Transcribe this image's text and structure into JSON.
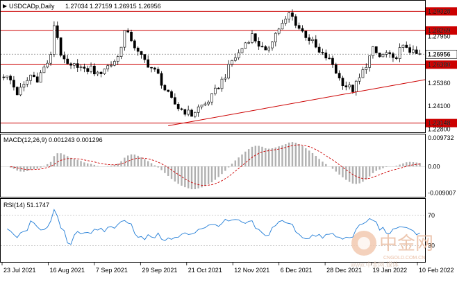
{
  "chart_data": [
    {
      "type": "candlestick",
      "symbol_header": "USDCADp,Daily",
      "ohlc_readout": "1.27034 1.27159 1.26915 1.26956",
      "y_ticks": [
        "1.29328",
        "1.28269",
        "1.27950",
        "1.26956",
        "1.26380",
        "1.25360",
        "1.24100",
        "1.23148",
        "1.22800"
      ],
      "ylim": [
        1.2275,
        1.2965
      ],
      "horizontal_lines": [
        {
          "value": 1.29328,
          "label": "1.29328",
          "color": "#cc0000"
        },
        {
          "value": 1.28269,
          "label": "1.28269",
          "color": "#cc0000"
        },
        {
          "value": 1.2638,
          "label": "1.26380",
          "color": "#cc0000"
        },
        {
          "value": 1.23148,
          "label": "1.23148",
          "color": "#cc0000"
        }
      ],
      "current_price": {
        "value": 1.26956,
        "label": "1.26956"
      },
      "trendline": {
        "from": [
          "21 Oct 2021",
          1.23
        ],
        "to": [
          "24 Feb 2022",
          1.2555
        ],
        "color": "#cc0000"
      },
      "x_ticks": [
        "23 Jul 2021",
        "16 Aug 2021",
        "7 Sep 2021",
        "29 Sep 2021",
        "21 Oct 2021",
        "12 Nov 2021",
        "6 Dec 2021",
        "28 Dec 2021",
        "19 Jan 2022",
        "10 Feb 2022"
      ],
      "close_path": [
        [
          0,
          1.258
        ],
        [
          2,
          1.255
        ],
        [
          4,
          1.248
        ],
        [
          6,
          1.252
        ],
        [
          8,
          1.258
        ],
        [
          10,
          1.256
        ],
        [
          12,
          1.262
        ],
        [
          14,
          1.268
        ],
        [
          15,
          1.286
        ],
        [
          16,
          1.279
        ],
        [
          17,
          1.27
        ],
        [
          18,
          1.265
        ],
        [
          20,
          1.262
        ],
        [
          22,
          1.264
        ],
        [
          24,
          1.26
        ],
        [
          26,
          1.262
        ],
        [
          28,
          1.258
        ],
        [
          30,
          1.262
        ],
        [
          32,
          1.264
        ],
        [
          34,
          1.268
        ],
        [
          36,
          1.282
        ],
        [
          38,
          1.278
        ],
        [
          40,
          1.27
        ],
        [
          42,
          1.266
        ],
        [
          44,
          1.262
        ],
        [
          46,
          1.258
        ],
        [
          48,
          1.25
        ],
        [
          50,
          1.244
        ],
        [
          52,
          1.24
        ],
        [
          54,
          1.238
        ],
        [
          56,
          1.236
        ],
        [
          58,
          1.24
        ],
        [
          60,
          1.242
        ],
        [
          62,
          1.246
        ],
        [
          64,
          1.252
        ],
        [
          66,
          1.258
        ],
        [
          68,
          1.266
        ],
        [
          70,
          1.27
        ],
        [
          72,
          1.276
        ],
        [
          74,
          1.28
        ],
        [
          76,
          1.275
        ],
        [
          78,
          1.27
        ],
        [
          80,
          1.278
        ],
        [
          82,
          1.284
        ],
        [
          84,
          1.288
        ],
        [
          85,
          1.292
        ],
        [
          86,
          1.29
        ],
        [
          88,
          1.284
        ],
        [
          90,
          1.28
        ],
        [
          92,
          1.276
        ],
        [
          94,
          1.27
        ],
        [
          96,
          1.268
        ],
        [
          98,
          1.264
        ],
        [
          100,
          1.256
        ],
        [
          102,
          1.252
        ],
        [
          104,
          1.25
        ],
        [
          106,
          1.256
        ],
        [
          108,
          1.264
        ],
        [
          110,
          1.272
        ],
        [
          112,
          1.268
        ],
        [
          114,
          1.27
        ],
        [
          116,
          1.266
        ],
        [
          118,
          1.272
        ],
        [
          120,
          1.274
        ],
        [
          122,
          1.27
        ],
        [
          124,
          1.269
        ]
      ]
    },
    {
      "type": "bar",
      "indicator": "MACD",
      "header": "MACD(12,26,9) 0.001243 0.001296",
      "y_ticks": [
        "0.009732",
        "0.00",
        "-0.009007"
      ],
      "ylim": [
        -0.0098,
        0.0104
      ],
      "signal_color": "#cc0000",
      "histogram_color": "#b0b0b0"
    },
    {
      "type": "line",
      "indicator": "RSI",
      "header": "RSI(14) 51.1747",
      "y_ticks": [
        "70",
        "30"
      ],
      "ylim": [
        10,
        90
      ],
      "series_color": "#1e7bd6",
      "levels": [
        70,
        30
      ]
    }
  ],
  "watermark": {
    "line1": "中金网",
    "line2": "CNGOLD.COM.CN",
    "line3": "www.中金网.媒体"
  }
}
